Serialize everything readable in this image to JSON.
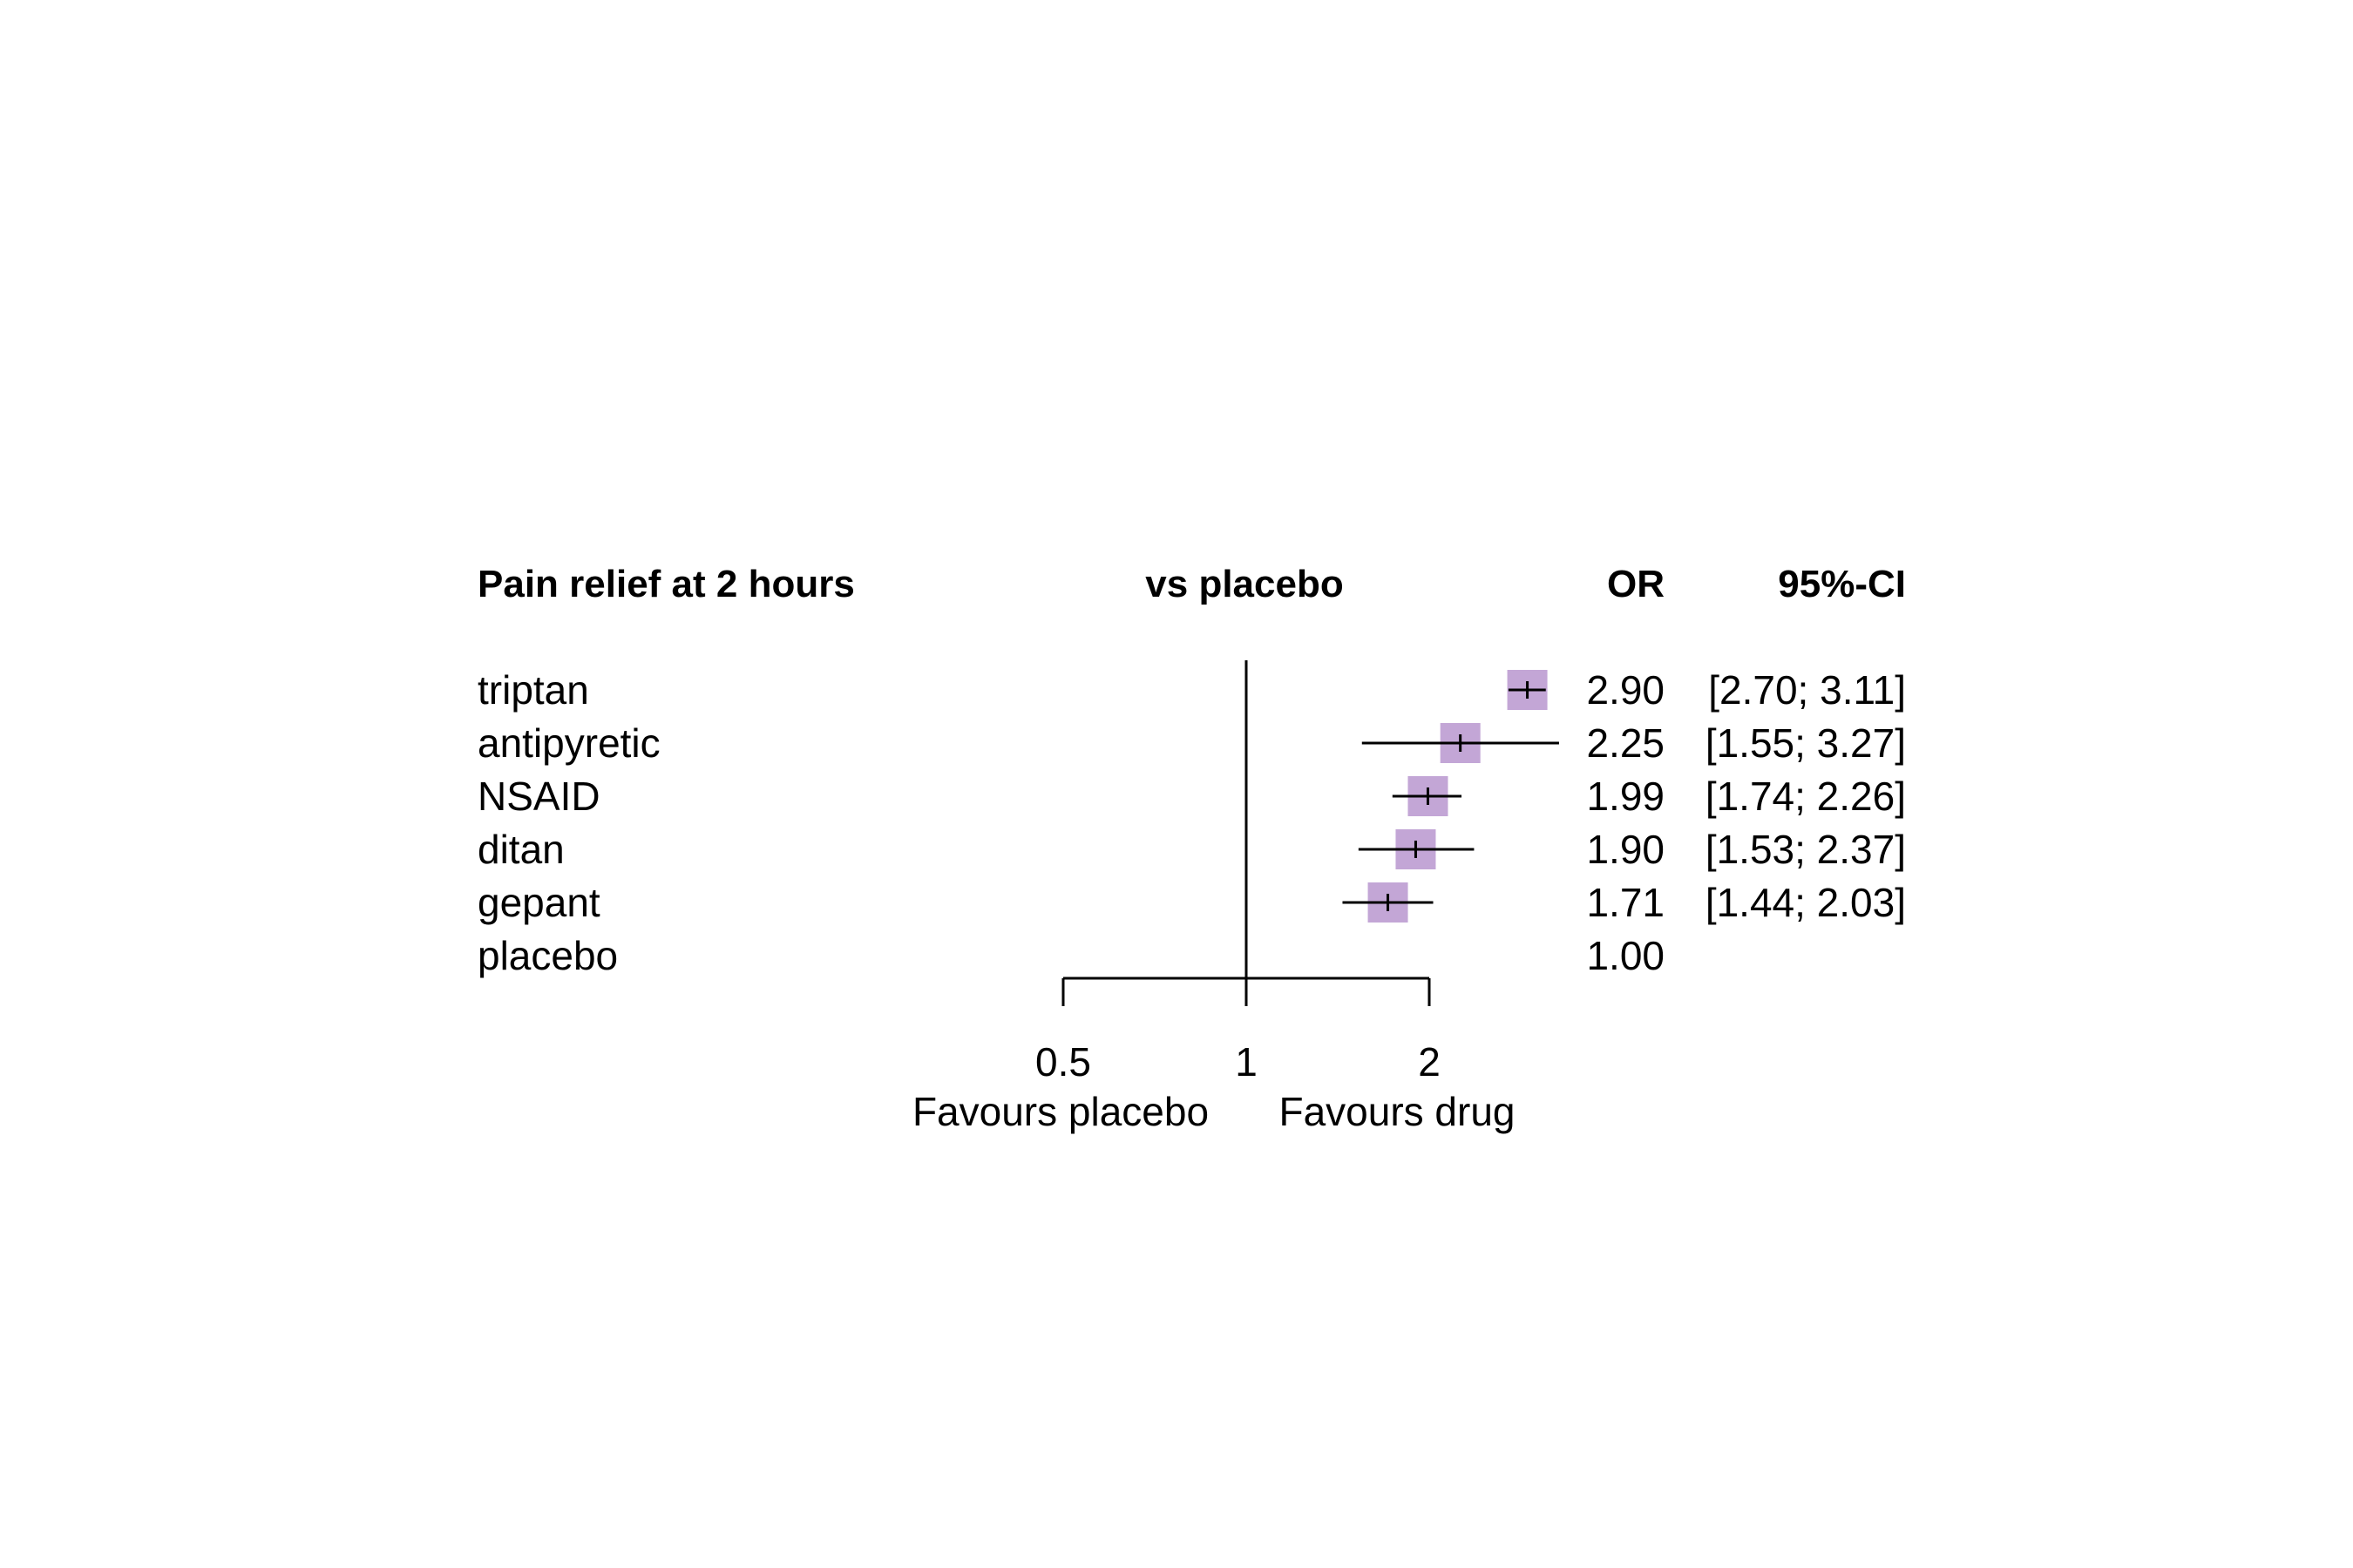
{
  "chart_data": {
    "type": "forest",
    "title": "Pain relief at 2 hours",
    "columns": {
      "study": "Pain relief at 2 hours",
      "plot": "vs placebo",
      "estimate": "OR",
      "ci": "95%-CI"
    },
    "x_scale": "log",
    "xlim": [
      0.5,
      2.5
    ],
    "reference_line": 1,
    "ticks": [
      {
        "value": 0.5,
        "label": "0.5"
      },
      {
        "value": 1,
        "label": "1"
      },
      {
        "value": 2,
        "label": "2"
      }
    ],
    "xlabel_left": "Favours placebo",
    "xlabel_right": "Favours drug",
    "box_color": "#c3a6d6",
    "rows": [
      {
        "label": "triptan",
        "or": 2.9,
        "lower": 2.7,
        "upper": 3.11,
        "or_text": "2.90",
        "ci_text": "[2.70; 3.11]"
      },
      {
        "label": "antipyretic",
        "or": 2.25,
        "lower": 1.55,
        "upper": 3.27,
        "or_text": "2.25",
        "ci_text": "[1.55; 3.27]"
      },
      {
        "label": "NSAID",
        "or": 1.99,
        "lower": 1.74,
        "upper": 2.26,
        "or_text": "1.99",
        "ci_text": "[1.74; 2.26]"
      },
      {
        "label": "ditan",
        "or": 1.9,
        "lower": 1.53,
        "upper": 2.37,
        "or_text": "1.90",
        "ci_text": "[1.53; 2.37]"
      },
      {
        "label": "gepant",
        "or": 1.71,
        "lower": 1.44,
        "upper": 2.03,
        "or_text": "1.71",
        "ci_text": "[1.44; 2.03]"
      },
      {
        "label": "placebo",
        "or": 1.0,
        "lower": null,
        "upper": null,
        "or_text": "1.00",
        "ci_text": ""
      }
    ]
  }
}
